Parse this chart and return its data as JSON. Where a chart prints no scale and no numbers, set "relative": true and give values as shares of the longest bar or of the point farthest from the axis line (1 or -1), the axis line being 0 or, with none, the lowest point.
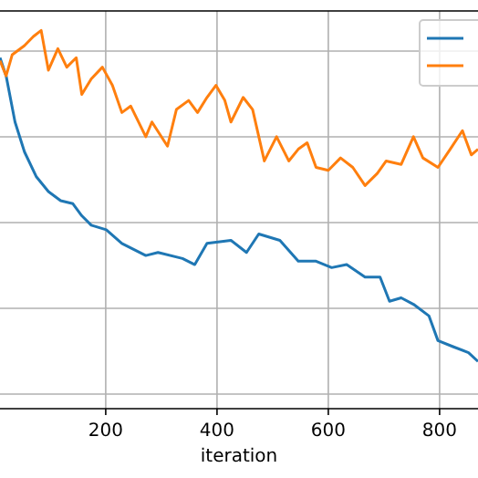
{
  "chart_data": {
    "type": "line",
    "xlabel": "iteration",
    "xlim": [
      10,
      869
    ],
    "xticks": [
      200,
      400,
      600,
      800
    ],
    "relative": true,
    "grid": true,
    "series": [
      {
        "color": "#1f77b4",
        "x": [
          10,
          21,
          37,
          54,
          75,
          97,
          119,
          141,
          157,
          174,
          201,
          229,
          272,
          294,
          338,
          360,
          382,
          425,
          453,
          475,
          513,
          546,
          578,
          606,
          633,
          666,
          693,
          710,
          731,
          753,
          781,
          797,
          824,
          852,
          869
        ],
        "values": [
          0.928,
          0.88,
          0.758,
          0.679,
          0.614,
          0.574,
          0.55,
          0.542,
          0.51,
          0.485,
          0.473,
          0.437,
          0.405,
          0.413,
          0.397,
          0.381,
          0.437,
          0.445,
          0.413,
          0.462,
          0.445,
          0.39,
          0.39,
          0.373,
          0.381,
          0.348,
          0.348,
          0.284,
          0.293,
          0.276,
          0.245,
          0.18,
          0.164,
          0.148,
          0.125
        ]
      },
      {
        "color": "#ff7f0e",
        "x": [
          10,
          21,
          32,
          54,
          70,
          84,
          97,
          114,
          130,
          147,
          157,
          174,
          194,
          212,
          229,
          245,
          272,
          283,
          311,
          327,
          349,
          365,
          382,
          398,
          414,
          425,
          447,
          464,
          485,
          507,
          529,
          546,
          562,
          578,
          600,
          622,
          644,
          666,
          688,
          704,
          731,
          753,
          770,
          797,
          819,
          841,
          857,
          869
        ],
        "values": [
          0.92,
          0.88,
          0.936,
          0.96,
          0.984,
          1,
          0.895,
          0.952,
          0.903,
          0.928,
          0.831,
          0.872,
          0.903,
          0.855,
          0.783,
          0.8,
          0.719,
          0.758,
          0.694,
          0.791,
          0.815,
          0.783,
          0.823,
          0.855,
          0.815,
          0.758,
          0.823,
          0.791,
          0.655,
          0.719,
          0.655,
          0.686,
          0.703,
          0.638,
          0.63,
          0.663,
          0.638,
          0.59,
          0.622,
          0.655,
          0.646,
          0.719,
          0.663,
          0.638,
          0.686,
          0.735,
          0.671,
          0.686
        ]
      }
    ]
  }
}
